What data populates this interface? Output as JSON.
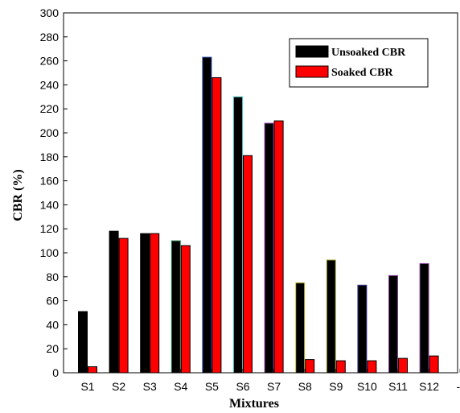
{
  "chart_data": {
    "type": "bar",
    "title": "",
    "xlabel": "Mixtures",
    "ylabel": "CBR (%)",
    "ylim": [
      0,
      300
    ],
    "yticks": [
      0,
      20,
      40,
      60,
      80,
      100,
      120,
      140,
      160,
      180,
      200,
      220,
      240,
      260,
      280,
      300
    ],
    "categories": [
      "S1",
      "S2",
      "S3",
      "S4",
      "S5",
      "S6",
      "S7",
      "S8",
      "S9",
      "S10",
      "S11",
      "S12",
      "--"
    ],
    "grid": false,
    "legend_position": "top-right",
    "series": [
      {
        "name": "Unsoaked CBR",
        "color": "#000000",
        "values": [
          51,
          118,
          116,
          110,
          263,
          230,
          208,
          75,
          94,
          73,
          81,
          91,
          null
        ],
        "outline_colors": [
          "#000000",
          "#000000",
          "#000000",
          "#2e8b57",
          "#1a3fa0",
          "#40c0c0",
          "#8a3f9e",
          "#c8c040",
          "#a8a838",
          "#3a3a9a",
          "#8a3f9e",
          "#8a3f9e",
          "#000000"
        ]
      },
      {
        "name": "Soaked CBR",
        "color": "#ff0000",
        "values": [
          5,
          112,
          116,
          106,
          246,
          181,
          210,
          11,
          10,
          10,
          12,
          14,
          null
        ]
      }
    ]
  }
}
